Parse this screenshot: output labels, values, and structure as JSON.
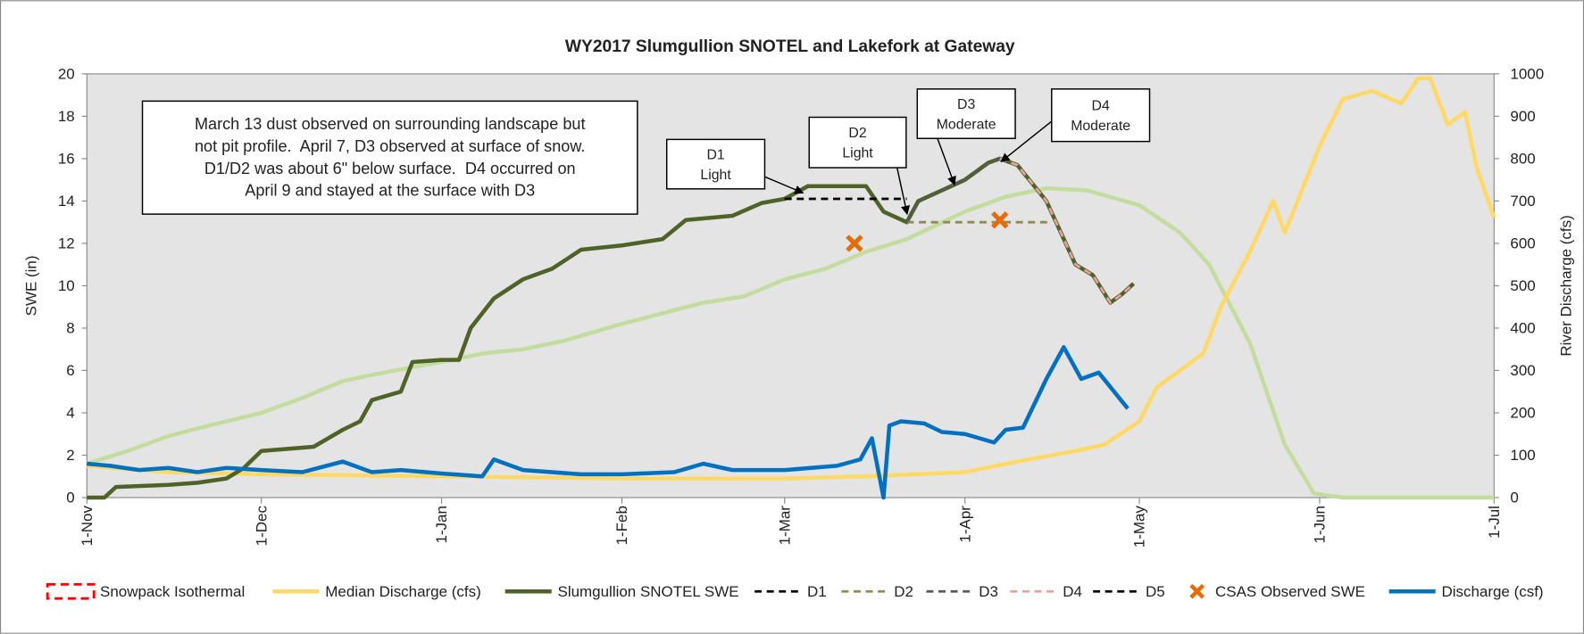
{
  "chart_data": {
    "type": "line",
    "title": "WY2017 Slumgullion SNOTEL and Lakefork at Gateway",
    "y_label": "SWE (in)",
    "y2_label": "River Discharge (cfs)",
    "xlim": [
      "1-Nov",
      "1-Jul"
    ],
    "xticks": [
      "1-Nov",
      "1-Dec",
      "1-Jan",
      "1-Feb",
      "1-Mar",
      "1-Apr",
      "1-May",
      "1-Jun",
      "1-Jul"
    ],
    "ylim": [
      0,
      20
    ],
    "yticks": [
      0,
      2,
      4,
      6,
      8,
      10,
      12,
      14,
      16,
      18,
      20
    ],
    "y2lim": [
      0,
      1000
    ],
    "y2ticks": [
      0,
      100,
      200,
      300,
      400,
      500,
      600,
      700,
      800,
      900,
      1000
    ],
    "legend": "bottom",
    "annotations": [
      {
        "lines": [
          "March 13 dust observed on surrounding landscape but",
          "not pit profile.  April 7, D3 observed at surface of snow.",
          "D1/D2 was about 6\" below surface.  D4 occurred on",
          "April 9 and stayed at the surface with D3"
        ]
      },
      {
        "lines": [
          "D1",
          "Light"
        ]
      },
      {
        "lines": [
          "D2",
          "Light"
        ]
      },
      {
        "lines": [
          "D3",
          "Moderate"
        ]
      },
      {
        "lines": [
          "D4",
          "Moderate"
        ]
      }
    ],
    "series": [
      {
        "type": "line",
        "color": "#c4dd9e",
        "x": [
          "1-Nov",
          "8-Nov",
          "15-Nov",
          "22-Nov",
          "1-Dec",
          "8-Dec",
          "15-Dec",
          "22-Dec",
          "1-Jan",
          "8-Jan",
          "15-Jan",
          "22-Jan",
          "1-Feb",
          "8-Feb",
          "15-Feb",
          "22-Feb",
          "1-Mar",
          "8-Mar",
          "15-Mar",
          "22-Mar",
          "1-Apr",
          "8-Apr",
          "15-Apr",
          "22-Apr",
          "1-May",
          "8-May",
          "13-May",
          "20-May",
          "26-May",
          "31-May",
          "5-Jun",
          "1-Jul"
        ],
        "values": [
          1.6,
          2.2,
          2.9,
          3.4,
          4.0,
          4.7,
          5.5,
          5.9,
          6.4,
          6.8,
          7.0,
          7.4,
          8.2,
          8.7,
          9.2,
          9.5,
          10.3,
          10.8,
          11.6,
          12.2,
          13.5,
          14.2,
          14.6,
          14.5,
          13.8,
          12.5,
          11,
          7.3,
          2.5,
          0.2,
          0,
          0
        ]
      },
      {
        "name": "Snowpack Isothermal",
        "type": "legend-only",
        "style": "box",
        "color": "#ff0000"
      },
      {
        "name": "Median Discharge (cfs)",
        "type": "line",
        "axis": "y2",
        "color": "#ffd966",
        "x": [
          "1-Nov",
          "15-Nov",
          "1-Dec",
          "1-Jan",
          "1-Feb",
          "1-Mar",
          "15-Mar",
          "1-Apr",
          "10-Apr",
          "20-Apr",
          "25-Apr",
          "1-May",
          "4-May",
          "8-May",
          "12-May",
          "15-May",
          "20-May",
          "24-May",
          "26-May",
          "1-Jun",
          "5-Jun",
          "10-Jun",
          "15-Jun",
          "18-Jun",
          "20-Jun",
          "23-Jun",
          "26-Jun",
          "28-Jun",
          "1-Jul"
        ],
        "values": [
          75,
          60,
          55,
          50,
          45,
          45,
          50,
          60,
          85,
          110,
          125,
          180,
          260,
          300,
          340,
          450,
          580,
          700,
          625,
          830,
          940,
          960,
          930,
          990,
          990,
          880,
          910,
          780,
          660
        ]
      },
      {
        "name": "Slumgullion SNOTEL SWE",
        "type": "line",
        "color": "#4f6228",
        "x": [
          "1-Nov",
          "4-Nov",
          "6-Nov",
          "15-Nov",
          "20-Nov",
          "25-Nov",
          "28-Nov",
          "1-Dec",
          "10-Dec",
          "15-Dec",
          "18-Dec",
          "20-Dec",
          "25-Dec",
          "27-Dec",
          "1-Jan",
          "4-Jan",
          "6-Jan",
          "10-Jan",
          "15-Jan",
          "20-Jan",
          "25-Jan",
          "1-Feb",
          "8-Feb",
          "12-Feb",
          "20-Feb",
          "25-Feb",
          "1-Mar",
          "5-Mar",
          "15-Mar",
          "18-Mar",
          "22-Mar",
          "24-Mar",
          "28-Mar",
          "1-Apr",
          "5-Apr",
          "7-Apr",
          "10-Apr",
          "15-Apr",
          "20-Apr",
          "23-Apr",
          "26-Apr",
          "28-Apr",
          "30-Apr"
        ],
        "values": [
          0,
          0,
          0.5,
          0.6,
          0.7,
          0.9,
          1.4,
          2.2,
          2.4,
          3.2,
          3.6,
          4.6,
          5.0,
          6.4,
          6.5,
          6.5,
          8.0,
          9.4,
          10.3,
          10.8,
          11.7,
          11.9,
          12.2,
          13.1,
          13.3,
          13.9,
          14.1,
          14.7,
          14.7,
          13.5,
          13.0,
          14.0,
          14.5,
          15.0,
          15.8,
          16.0,
          15.7,
          14.0,
          11.0,
          10.5,
          9.2,
          9.6,
          10.1
        ]
      },
      {
        "name": "D1",
        "type": "line",
        "style": "dashed",
        "color": "#000000",
        "x": [
          "1-Mar",
          "22-Mar"
        ],
        "values": [
          14.1,
          14.1
        ]
      },
      {
        "name": "D2",
        "type": "line",
        "style": "dashed",
        "color": "#938953",
        "x": [
          "22-Mar",
          "16-Apr"
        ],
        "values": [
          13.0,
          13.0
        ]
      },
      {
        "name": "D3",
        "type": "line",
        "style": "dashed",
        "color": "#595959",
        "x": [
          "22-Mar",
          "24-Mar",
          "28-Mar",
          "1-Apr",
          "5-Apr",
          "7-Apr"
        ],
        "values": [
          13.0,
          14.0,
          14.5,
          15.0,
          15.8,
          16.0
        ]
      },
      {
        "name": "D4",
        "type": "line",
        "style": "dashed",
        "color": "#e6a0a0",
        "x": [
          "7-Apr",
          "10-Apr",
          "15-Apr",
          "20-Apr",
          "23-Apr",
          "26-Apr",
          "28-Apr",
          "30-Apr"
        ],
        "values": [
          16.0,
          15.7,
          14.0,
          11.0,
          10.5,
          9.2,
          9.6,
          10.1
        ]
      },
      {
        "name": "D5",
        "type": "legend-only",
        "style": "dashed",
        "color": "#000000"
      },
      {
        "name": "CSAS Observed SWE",
        "type": "scatter",
        "color": "#e46c0a",
        "x": [
          "13-Mar",
          "7-Apr"
        ],
        "values": [
          12.0,
          13.1
        ]
      },
      {
        "name": "Discharge (csf)",
        "type": "line",
        "axis": "y2",
        "color": "#0070c0",
        "x": [
          "1-Nov",
          "5-Nov",
          "10-Nov",
          "15-Nov",
          "20-Nov",
          "25-Nov",
          "1-Dec",
          "8-Dec",
          "15-Dec",
          "20-Dec",
          "25-Dec",
          "1-Jan",
          "8-Jan",
          "10-Jan",
          "15-Jan",
          "25-Jan",
          "1-Feb",
          "10-Feb",
          "15-Feb",
          "20-Feb",
          "1-Mar",
          "10-Mar",
          "14-Mar",
          "16-Mar",
          "18-Mar",
          "19-Mar",
          "21-Mar",
          "25-Mar",
          "28-Mar",
          "1-Apr",
          "6-Apr",
          "8-Apr",
          "11-Apr",
          "15-Apr",
          "18-Apr",
          "21-Apr",
          "24-Apr",
          "29-Apr"
        ],
        "values": [
          80,
          75,
          65,
          70,
          60,
          70,
          65,
          60,
          85,
          60,
          65,
          57,
          50,
          90,
          65,
          55,
          55,
          60,
          80,
          65,
          65,
          75,
          90,
          140,
          0,
          170,
          180,
          175,
          155,
          150,
          130,
          160,
          165,
          280,
          355,
          280,
          295,
          210
        ]
      }
    ]
  }
}
